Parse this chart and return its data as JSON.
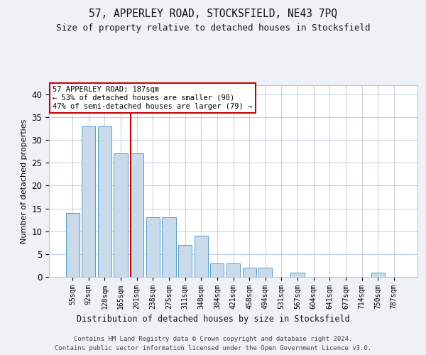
{
  "title1": "57, APPERLEY ROAD, STOCKSFIELD, NE43 7PQ",
  "title2": "Size of property relative to detached houses in Stocksfield",
  "xlabel": "Distribution of detached houses by size in Stocksfield",
  "ylabel": "Number of detached properties",
  "categories": [
    "55sqm",
    "92sqm",
    "128sqm",
    "165sqm",
    "201sqm",
    "238sqm",
    "275sqm",
    "311sqm",
    "348sqm",
    "384sqm",
    "421sqm",
    "458sqm",
    "494sqm",
    "531sqm",
    "567sqm",
    "604sqm",
    "641sqm",
    "677sqm",
    "714sqm",
    "750sqm",
    "787sqm"
  ],
  "values": [
    14,
    33,
    33,
    27,
    27,
    13,
    13,
    7,
    9,
    3,
    3,
    2,
    2,
    0,
    1,
    0,
    0,
    0,
    0,
    1,
    0
  ],
  "bar_color": "#c9daea",
  "bar_edge_color": "#5a9ec8",
  "vline_x": 3.62,
  "vline_color": "#cc0000",
  "annotation_text": "57 APPERLEY ROAD: 187sqm\n← 53% of detached houses are smaller (90)\n47% of semi-detached houses are larger (79) →",
  "annotation_box_color": "#ffffff",
  "annotation_box_edge_color": "#cc0000",
  "ylim": [
    0,
    42
  ],
  "yticks": [
    0,
    5,
    10,
    15,
    20,
    25,
    30,
    35,
    40
  ],
  "footer1": "Contains HM Land Registry data © Crown copyright and database right 2024.",
  "footer2": "Contains public sector information licensed under the Open Government Licence v3.0.",
  "background_color": "#eef2f7",
  "plot_bg_color": "#ffffff",
  "grid_color": "#b8c8d8"
}
